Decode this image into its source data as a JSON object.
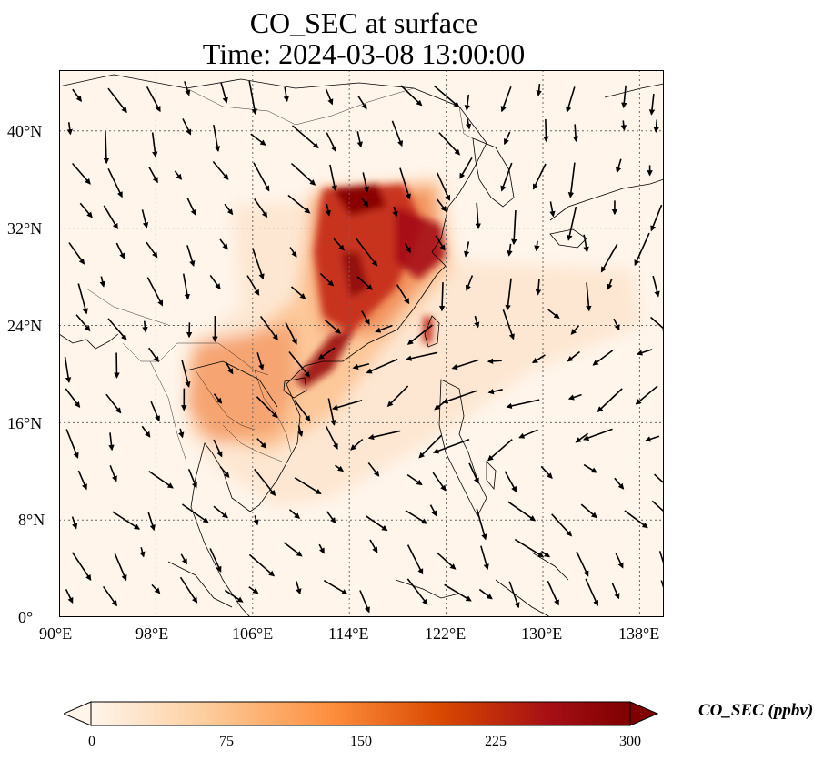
{
  "title": {
    "line1": "CO_SEC at surface",
    "line2": "Time: 2024-03-08 13:00:00"
  },
  "map": {
    "lon_range": [
      90,
      140
    ],
    "lat_range": [
      0,
      45
    ],
    "lon_ticks": [
      90,
      98,
      106,
      114,
      122,
      130,
      138
    ],
    "lat_ticks": [
      0,
      8,
      16,
      24,
      32,
      40
    ],
    "lon_tick_labels": [
      "90°E",
      "98°E",
      "106°E",
      "114°E",
      "122°E",
      "130°E",
      "138°E"
    ],
    "lat_tick_labels": [
      "0°",
      "8°N",
      "16°N",
      "24°N",
      "32°N",
      "40°N"
    ],
    "gridlines": true,
    "background_color": "#fff5eb",
    "field": "CO_SEC",
    "wind_vectors": true
  },
  "colorbar": {
    "label": "CO_SEC (ppbv)",
    "ticks": [
      0,
      75,
      150,
      225,
      300
    ],
    "tick_labels": [
      "0",
      "75",
      "150",
      "225",
      "300"
    ],
    "range": [
      0,
      300
    ],
    "extend": "both",
    "colors": [
      "#fff5eb",
      "#fdd0a2",
      "#fd8d3c",
      "#d94801",
      "#a50f15",
      "#7f0000"
    ]
  }
}
